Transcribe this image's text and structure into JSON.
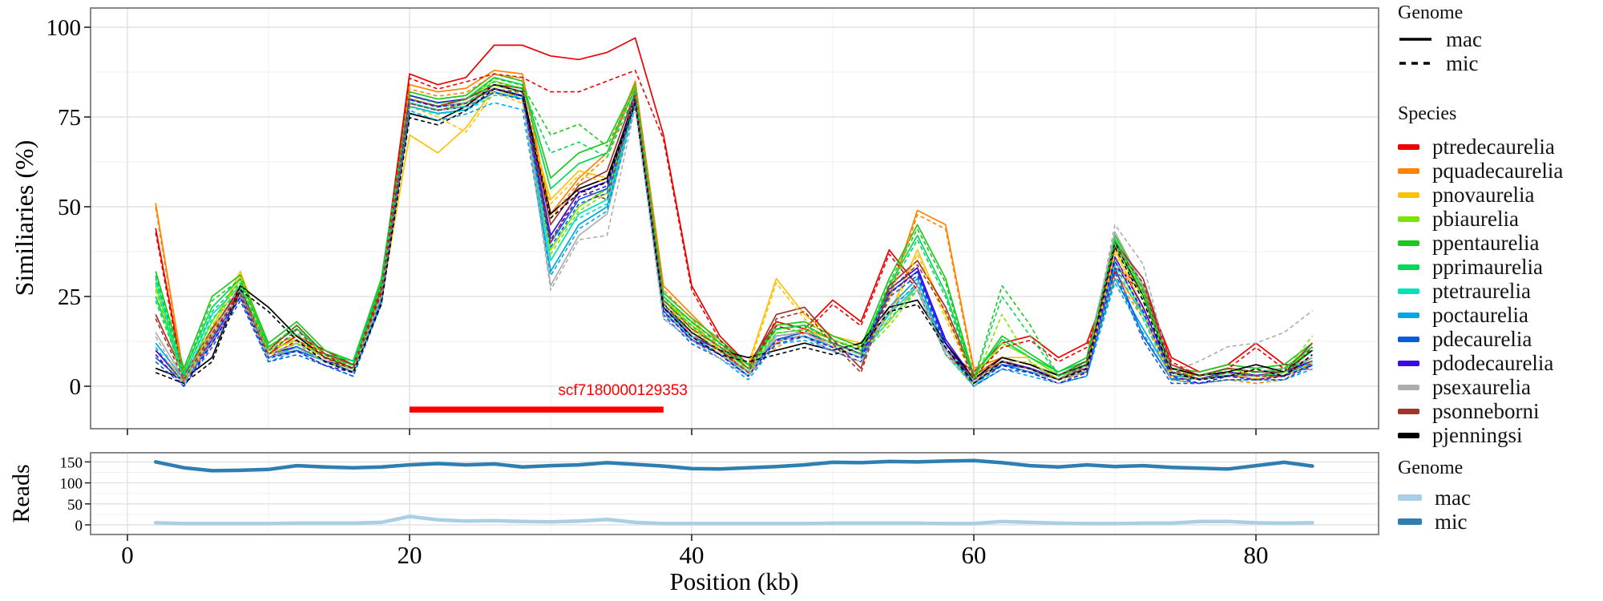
{
  "legend_top": {
    "genome_title": "Genome",
    "genome_items": [
      {
        "label": "mac",
        "dash": "solid"
      },
      {
        "label": "mic",
        "dash": "dashed"
      }
    ],
    "species_title": "Species"
  },
  "legend_bottom": {
    "title": "Genome",
    "items": [
      {
        "label": "mac",
        "color": "#A9CFE4"
      },
      {
        "label": "mic",
        "color": "#2F7EB2"
      }
    ]
  },
  "chart_data": [
    {
      "id": "similarity-panel",
      "type": "line",
      "title": "",
      "xlabel": "Position (kb)",
      "ylabel": "Similiaries (%)",
      "xlim": [
        -2.6,
        88.7
      ],
      "ylim": [
        -11.8,
        105.8
      ],
      "x_ticks": [
        0,
        20,
        40,
        60,
        80
      ],
      "x_minor": [
        10,
        30,
        50,
        70
      ],
      "y_ticks": [
        0,
        25,
        50,
        75,
        100
      ],
      "y_minor": [
        12.5,
        37.5,
        62.5,
        87.5
      ],
      "grid": "on",
      "legend_position": "right",
      "annotation": {
        "label": "scf7180000129353",
        "color": "#FF0000",
        "x_start": 20,
        "x_end": 38,
        "y": -6.5
      },
      "x": [
        2,
        4,
        6,
        8,
        10,
        12,
        14,
        16,
        18,
        20,
        22,
        24,
        26,
        28,
        30,
        32,
        34,
        36,
        38,
        40,
        42,
        44,
        46,
        48,
        50,
        52,
        54,
        56,
        58,
        60,
        62,
        64,
        66,
        68,
        70,
        72,
        74,
        76,
        78,
        80,
        82,
        84
      ],
      "series": [
        {
          "species": "ptredecaurelia",
          "color": "#ED0000",
          "mic_default": -1.2,
          "mac": [
            44,
            2,
            15,
            28,
            9,
            14,
            10,
            6,
            28,
            87,
            84,
            86,
            95,
            95,
            92,
            91,
            93,
            97,
            70,
            28,
            14,
            6,
            18,
            16,
            24,
            18,
            38,
            28,
            10,
            4,
            12,
            14,
            8,
            12,
            33,
            28,
            8,
            4,
            6,
            12,
            6,
            6
          ],
          "mic_delta": {
            "26": -8,
            "28": -9,
            "30": -10,
            "32": -9,
            "34": -8,
            "36": -9
          }
        },
        {
          "species": "pquadecaurelia",
          "color": "#FF8300",
          "mic_default": -1.2,
          "mac": [
            51,
            3,
            13,
            26,
            9,
            12,
            8,
            5,
            25,
            84,
            82,
            83,
            88,
            87,
            48,
            58,
            65,
            85,
            28,
            20,
            12,
            5,
            12,
            16,
            13,
            10,
            25,
            49,
            45,
            5,
            8,
            6,
            3,
            6,
            32,
            20,
            3,
            2,
            3,
            2,
            3,
            8
          ],
          "mic_delta": {}
        },
        {
          "species": "pnovaurelia",
          "color": "#FFC104",
          "mic_default": -1.2,
          "mac": [
            10,
            2,
            16,
            32,
            11,
            14,
            9,
            6,
            24,
            70,
            65,
            72,
            83,
            80,
            52,
            60,
            58,
            80,
            24,
            18,
            10,
            6,
            30,
            20,
            14,
            12,
            20,
            38,
            20,
            3,
            8,
            8,
            3,
            5,
            38,
            22,
            4,
            3,
            5,
            3,
            4,
            8
          ],
          "mic_delta": {
            "20": 8,
            "22": 10
          }
        },
        {
          "species": "pbiaurelia",
          "color": "#7EE303",
          "mic_default": -1.2,
          "mac": [
            28,
            2,
            18,
            30,
            10,
            13,
            8,
            6,
            27,
            80,
            78,
            80,
            85,
            83,
            38,
            50,
            55,
            82,
            24,
            17,
            11,
            5,
            16,
            17,
            13,
            10,
            18,
            28,
            10,
            2,
            12,
            8,
            3,
            6,
            40,
            26,
            5,
            3,
            5,
            4,
            5,
            10
          ],
          "mic_delta": {
            "62": 8,
            "84": 4
          }
        },
        {
          "species": "ppentaurelia",
          "color": "#1DC81D",
          "mic_default": -1.2,
          "mac": [
            32,
            5,
            25,
            31,
            12,
            18,
            10,
            7,
            30,
            82,
            80,
            81,
            87,
            85,
            58,
            65,
            68,
            84,
            26,
            19,
            13,
            6,
            17,
            18,
            14,
            11,
            30,
            45,
            30,
            3,
            14,
            9,
            4,
            8,
            42,
            28,
            5,
            4,
            6,
            5,
            6,
            12
          ],
          "mic_delta": {
            "30": 12,
            "32": 8,
            "62": 14,
            "64": 8
          }
        },
        {
          "species": "pprimaurelia",
          "color": "#00D957",
          "mic_default": -1.2,
          "mac": [
            25,
            4,
            22,
            30,
            11,
            16,
            9,
            7,
            29,
            81,
            79,
            80,
            86,
            84,
            55,
            62,
            65,
            83,
            25,
            18,
            12,
            6,
            16,
            17,
            13,
            10,
            28,
            42,
            26,
            3,
            13,
            8,
            4,
            7,
            41,
            27,
            5,
            3,
            5,
            4,
            5,
            11
          ],
          "mic_delta": {
            "30": 10,
            "32": 6,
            "62": 12,
            "64": 6
          }
        },
        {
          "species": "ptetraurelia",
          "color": "#00E2B8",
          "mic_default": -1.2,
          "mac": [
            30,
            3,
            20,
            28,
            9,
            12,
            8,
            5,
            26,
            79,
            77,
            78,
            84,
            82,
            35,
            48,
            52,
            80,
            22,
            15,
            10,
            4,
            14,
            15,
            12,
            9,
            20,
            28,
            10,
            0,
            7,
            5,
            2,
            5,
            35,
            20,
            4,
            2,
            4,
            3,
            4,
            8
          ],
          "mic_delta": {
            "26": -3,
            "30": 6
          }
        },
        {
          "species": "poctaurelia",
          "color": "#00A7E7",
          "mic_default": -1.2,
          "mac": [
            12,
            2,
            14,
            26,
            8,
            11,
            7,
            4,
            25,
            78,
            76,
            77,
            82,
            80,
            32,
            45,
            50,
            79,
            20,
            14,
            9,
            3,
            13,
            14,
            11,
            8,
            22,
            30,
            10,
            1,
            6,
            4,
            2,
            4,
            30,
            16,
            3,
            2,
            3,
            3,
            3,
            6
          ],
          "mic_delta": {
            "22": -2,
            "26": -3,
            "28": -3
          }
        },
        {
          "species": "pdecaurelia",
          "color": "#0A5BDC",
          "mic_default": -1.2,
          "mac": [
            8,
            1,
            12,
            25,
            8,
            10,
            7,
            4,
            24,
            80,
            78,
            79,
            83,
            81,
            40,
            52,
            55,
            80,
            21,
            13,
            9,
            4,
            13,
            15,
            11,
            8,
            26,
            32,
            12,
            1,
            6,
            5,
            2,
            4,
            33,
            14,
            2,
            2,
            3,
            3,
            3,
            7
          ],
          "mic_delta": {}
        },
        {
          "species": "pdodecaurelia",
          "color": "#3A0AE8",
          "mic_default": -1.2,
          "mac": [
            10,
            1,
            13,
            26,
            9,
            11,
            7,
            5,
            25,
            81,
            79,
            80,
            84,
            82,
            42,
            54,
            57,
            81,
            22,
            14,
            10,
            4,
            14,
            15,
            12,
            9,
            27,
            33,
            13,
            2,
            7,
            5,
            2,
            5,
            36,
            22,
            4,
            2,
            4,
            3,
            4,
            7
          ],
          "mic_delta": {}
        },
        {
          "species": "psexaurelia",
          "color": "#ADADAD",
          "mic_default": -1.2,
          "mac": [
            15,
            2,
            15,
            27,
            9,
            12,
            8,
            5,
            26,
            80,
            78,
            79,
            84,
            82,
            28,
            42,
            48,
            79,
            20,
            14,
            9,
            4,
            14,
            15,
            11,
            8,
            22,
            28,
            10,
            1,
            8,
            6,
            2,
            6,
            43,
            28,
            5,
            3,
            5,
            4,
            5,
            8
          ],
          "mic_delta": {
            "34": -6,
            "70": 2,
            "72": 6,
            "76": 4,
            "78": 6,
            "80": 8,
            "82": 10,
            "84": 13
          }
        },
        {
          "species": "psonneborni",
          "color": "#A1352C",
          "mic_default": -1.2,
          "mac": [
            20,
            3,
            16,
            27,
            10,
            17,
            9,
            6,
            27,
            80,
            78,
            80,
            84,
            83,
            45,
            56,
            60,
            82,
            24,
            16,
            11,
            5,
            20,
            22,
            13,
            5,
            28,
            35,
            22,
            3,
            8,
            6,
            3,
            7,
            40,
            30,
            6,
            3,
            5,
            4,
            4,
            12
          ],
          "mic_delta": {
            "30": -5,
            "34": -8
          }
        },
        {
          "species": "pjenningsi",
          "color": "#000000",
          "mic_default": -1.2,
          "mac": [
            5,
            2,
            8,
            28,
            22,
            14,
            8,
            5,
            24,
            76,
            74,
            78,
            84,
            82,
            48,
            55,
            58,
            80,
            23,
            15,
            10,
            8,
            10,
            12,
            10,
            12,
            22,
            24,
            12,
            2,
            8,
            6,
            3,
            6,
            40,
            25,
            5,
            3,
            4,
            6,
            4,
            10
          ],
          "mic_delta": {}
        }
      ]
    },
    {
      "id": "reads-panel",
      "type": "line",
      "ylabel": "Reads",
      "ylim": [
        -22.9,
        171.7
      ],
      "y_ticks": [
        0,
        50,
        100,
        150
      ],
      "y_minor": [
        25,
        75,
        125
      ],
      "x": [
        2,
        4,
        6,
        8,
        10,
        12,
        14,
        16,
        18,
        20,
        22,
        24,
        26,
        28,
        30,
        32,
        34,
        36,
        38,
        40,
        42,
        44,
        46,
        48,
        50,
        52,
        54,
        56,
        58,
        60,
        62,
        64,
        66,
        68,
        70,
        72,
        74,
        76,
        78,
        80,
        82,
        84
      ],
      "series": [
        {
          "genome": "mac",
          "color": "#A9CFE4",
          "y": [
            5,
            3,
            3,
            3,
            3,
            4,
            4,
            4,
            6,
            20,
            12,
            9,
            10,
            8,
            7,
            9,
            13,
            6,
            3,
            3,
            3,
            3,
            3,
            3,
            4,
            4,
            4,
            4,
            3,
            3,
            8,
            6,
            4,
            3,
            3,
            4,
            4,
            8,
            8,
            5,
            4,
            5
          ]
        },
        {
          "genome": "mic",
          "color": "#2F7EB2",
          "y": [
            150,
            136,
            129,
            130,
            132,
            141,
            138,
            136,
            138,
            143,
            146,
            143,
            145,
            138,
            141,
            143,
            148,
            144,
            140,
            134,
            133,
            136,
            139,
            143,
            149,
            148,
            151,
            150,
            152,
            153,
            148,
            141,
            138,
            143,
            139,
            141,
            137,
            135,
            133,
            141,
            149,
            140
          ]
        }
      ]
    }
  ]
}
